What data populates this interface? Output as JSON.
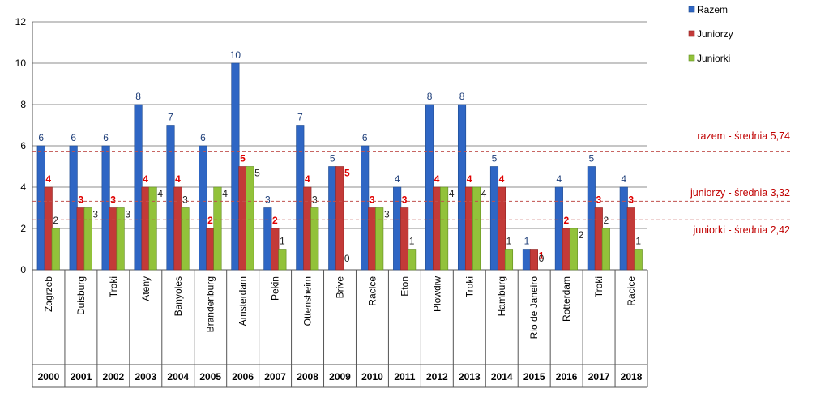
{
  "colors": {
    "razem": "#2f66c4",
    "juniorzy": "#c33a38",
    "juniorki": "#92c23a",
    "label_razem": "#1f3f7a",
    "label_juniorzy": "#e00000",
    "label_juniorki": "#222222",
    "avg_line": "#c0504d"
  },
  "chart_data": {
    "type": "bar",
    "ylim": [
      0,
      12
    ],
    "yticks": [
      "0",
      "2",
      "4",
      "6",
      "8",
      "10",
      "12"
    ],
    "grid": "horizontal",
    "legend_position": "top-right",
    "categories": [
      "Zagrzeb",
      "Duisburg",
      "Troki",
      "Ateny",
      "Banyoles",
      "Brandenburg",
      "Amsterdam",
      "Pekin",
      "Ottensheim",
      "Brive",
      "Racice",
      "Eton",
      "Plowdiw",
      "Troki",
      "Hamburg",
      "Rio de Janeiro",
      "Rotterdam",
      "Troki",
      "Racice"
    ],
    "years": [
      "2000",
      "2001",
      "2002",
      "2003",
      "2004",
      "2005",
      "2006",
      "2007",
      "2008",
      "2009",
      "2010",
      "2011",
      "2012",
      "2013",
      "2014",
      "2015",
      "2016",
      "2017",
      "2018"
    ],
    "series": [
      {
        "name": "Razem",
        "values": [
          6,
          6,
          6,
          8,
          7,
          6,
          10,
          3,
          7,
          5,
          6,
          4,
          8,
          8,
          5,
          1,
          4,
          5,
          4
        ]
      },
      {
        "name": "Juniorzy",
        "values": [
          4,
          3,
          3,
          4,
          4,
          2,
          5,
          2,
          4,
          5,
          3,
          3,
          4,
          4,
          4,
          1,
          2,
          3,
          3
        ]
      },
      {
        "name": "Juniorki",
        "values": [
          2,
          3,
          3,
          4,
          3,
          4,
          5,
          1,
          3,
          0,
          3,
          1,
          4,
          4,
          1,
          0,
          2,
          2,
          1
        ]
      }
    ],
    "averages": [
      {
        "label": "razem - średnia 5,74",
        "value": 5.74
      },
      {
        "label": "juniorzy - średnia 3,32",
        "value": 3.32
      },
      {
        "label": "juniorki - średnia 2,42",
        "value": 2.42
      }
    ]
  }
}
